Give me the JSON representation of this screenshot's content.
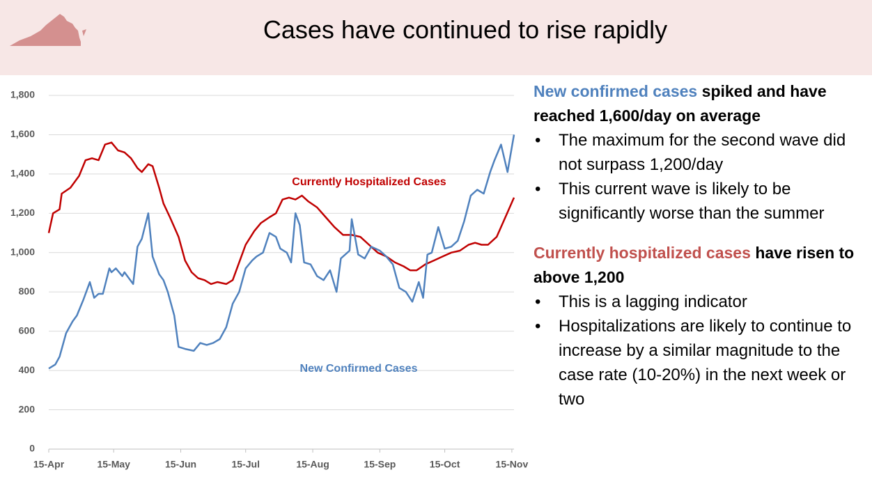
{
  "title": "Cases have continued to rise rapidly",
  "chart_data": {
    "type": "line",
    "xlim": [
      "15-Apr",
      "16-Nov"
    ],
    "xticks": [
      "15-Apr",
      "15-May",
      "15-Jun",
      "15-Jul",
      "15-Aug",
      "15-Sep",
      "15-Oct",
      "15-Nov"
    ],
    "ylim": [
      0,
      1800
    ],
    "yticks": [
      0,
      200,
      400,
      600,
      800,
      {
        "value": 1000,
        "label": "1,000"
      },
      {
        "value": 1200,
        "label": "1,200"
      },
      {
        "value": 1400,
        "label": "1,400"
      },
      {
        "value": 1600,
        "label": "1,600"
      },
      {
        "value": 1800,
        "label": "1,800"
      }
    ],
    "grid": true,
    "series": [
      {
        "name": "Currently Hospitalized Cases",
        "color": "#c00000",
        "x": [
          "15-Apr",
          "17-Apr",
          "20-Apr",
          "21-Apr",
          "25-Apr",
          "29-Apr",
          "2-May",
          "5-May",
          "8-May",
          "11-May",
          "14-May",
          "17-May",
          "20-May",
          "23-May",
          "26-May",
          "28-May",
          "31-May",
          "2-Jun",
          "5-Jun",
          "7-Jun",
          "10-Jun",
          "14-Jun",
          "17-Jun",
          "20-Jun",
          "23-Jun",
          "26-Jun",
          "29-Jun",
          "2-Jul",
          "6-Jul",
          "9-Jul",
          "12-Jul",
          "15-Jul",
          "19-Jul",
          "22-Jul",
          "26-Jul",
          "29-Jul",
          "1-Aug",
          "4-Aug",
          "7-Aug",
          "10-Aug",
          "13-Aug",
          "17-Aug",
          "21-Aug",
          "25-Aug",
          "29-Aug",
          "2-Sep",
          "6-Sep",
          "10-Sep",
          "14-Sep",
          "18-Sep",
          "22-Sep",
          "26-Sep",
          "29-Sep",
          "2-Oct",
          "6-Oct",
          "10-Oct",
          "14-Oct",
          "18-Oct",
          "22-Oct",
          "26-Oct",
          "29-Oct",
          "1-Nov",
          "4-Nov",
          "8-Nov",
          "12-Nov",
          "16-Nov"
        ],
        "values": [
          1100,
          1200,
          1220,
          1300,
          1330,
          1390,
          1470,
          1480,
          1470,
          1550,
          1560,
          1520,
          1510,
          1480,
          1430,
          1410,
          1450,
          1440,
          1330,
          1250,
          1180,
          1080,
          960,
          900,
          870,
          860,
          840,
          850,
          840,
          860,
          950,
          1040,
          1110,
          1150,
          1180,
          1200,
          1270,
          1280,
          1270,
          1290,
          1260,
          1230,
          1180,
          1130,
          1090,
          1090,
          1080,
          1040,
          1000,
          980,
          950,
          930,
          910,
          910,
          940,
          960,
          980,
          1000,
          1010,
          1040,
          1050,
          1040,
          1040,
          1080,
          1180,
          1280
        ]
      },
      {
        "name": "New Confirmed Cases",
        "color": "#4f81bd",
        "x": [
          "15-Apr",
          "18-Apr",
          "20-Apr",
          "23-Apr",
          "26-Apr",
          "28-Apr",
          "1-May",
          "4-May",
          "6-May",
          "8-May",
          "10-May",
          "13-May",
          "14-May",
          "16-May",
          "19-May",
          "20-May",
          "24-May",
          "26-May",
          "28-May",
          "31-May",
          "2-Jun",
          "5-Jun",
          "7-Jun",
          "9-Jun",
          "12-Jun",
          "14-Jun",
          "17-Jun",
          "21-Jun",
          "24-Jun",
          "27-Jun",
          "30-Jun",
          "3-Jul",
          "6-Jul",
          "9-Jul",
          "12-Jul",
          "15-Jul",
          "18-Jul",
          "20-Jul",
          "23-Jul",
          "26-Jul",
          "29-Jul",
          "31-Jul",
          "3-Aug",
          "5-Aug",
          "7-Aug",
          "9-Aug",
          "11-Aug",
          "14-Aug",
          "17-Aug",
          "20-Aug",
          "23-Aug",
          "26-Aug",
          "28-Aug",
          "1-Sep",
          "2-Sep",
          "5-Sep",
          "8-Sep",
          "11-Sep",
          "15-Sep",
          "18-Sep",
          "21-Sep",
          "24-Sep",
          "27-Sep",
          "30-Sep",
          "3-Oct",
          "5-Oct",
          "7-Oct",
          "9-Oct",
          "12-Oct",
          "15-Oct",
          "18-Oct",
          "21-Oct",
          "24-Oct",
          "27-Oct",
          "30-Oct",
          "2-Nov",
          "5-Nov",
          "7-Nov",
          "10-Nov",
          "13-Nov",
          "16-Nov"
        ],
        "values": [
          410,
          430,
          470,
          590,
          650,
          680,
          760,
          850,
          770,
          790,
          790,
          920,
          900,
          920,
          880,
          900,
          840,
          1030,
          1070,
          1200,
          980,
          890,
          860,
          800,
          680,
          520,
          510,
          500,
          540,
          530,
          540,
          560,
          620,
          740,
          800,
          920,
          960,
          980,
          1000,
          1100,
          1080,
          1020,
          1000,
          950,
          1200,
          1140,
          950,
          940,
          880,
          860,
          910,
          800,
          970,
          1010,
          1170,
          990,
          970,
          1030,
          1010,
          980,
          940,
          820,
          800,
          750,
          850,
          770,
          990,
          1000,
          1130,
          1020,
          1030,
          1060,
          1160,
          1290,
          1320,
          1300,
          1410,
          1470,
          1550,
          1410,
          1600
        ]
      }
    ]
  },
  "sections": [
    {
      "highlight": "New confirmed cases",
      "color": "#4f81bd",
      "rest": "spiked and have reached 1,600/day on average",
      "bullets": [
        "The maximum for the second wave did not surpass 1,200/day",
        "This current wave is likely to be significantly worse than the summer"
      ]
    },
    {
      "highlight": "Currently hospitalized cases",
      "color": "#c0504d",
      "rest": "have risen to above 1,200",
      "bullets": [
        "This is a lagging indicator",
        "Hospitalizations are likely to continue to increase by a similar magnitude to the case rate (10-20%) in the next week or two"
      ]
    }
  ]
}
